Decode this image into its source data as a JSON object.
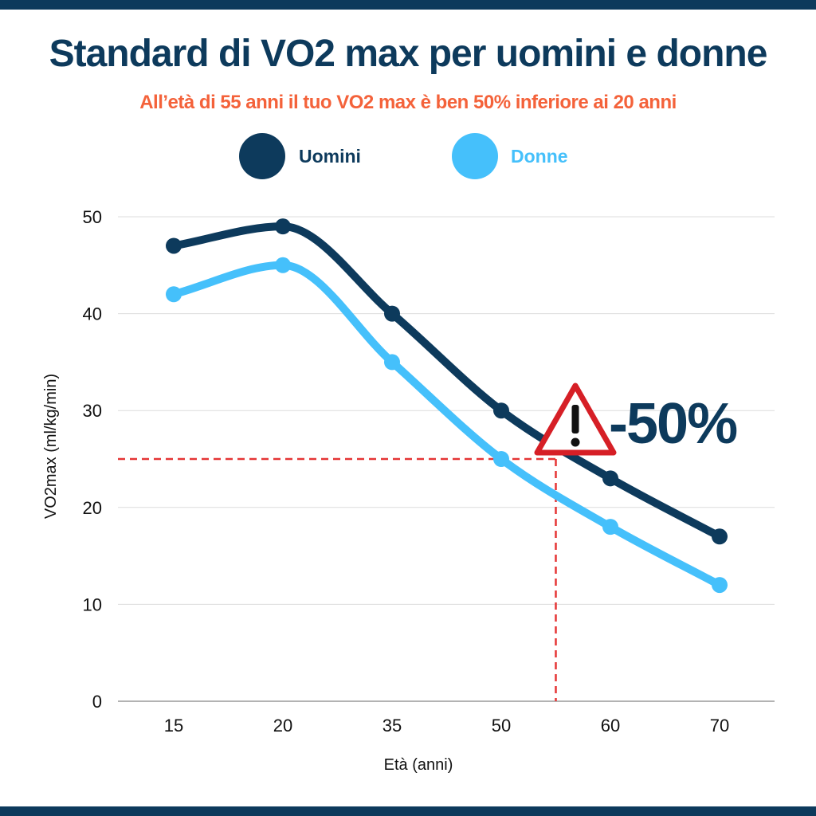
{
  "header": {
    "title": "Standard di VO2 max per uomini e donne",
    "subtitle": "All’età di 55 anni il tuo VO2 max è ben 50% inferiore ai 20 anni"
  },
  "colors": {
    "men": "#0d3a5c",
    "women": "#45c0fb",
    "accent": "#f4623a",
    "marker_line": "#e53535",
    "warning_red": "#d61f26"
  },
  "annotation": {
    "text": "-50%",
    "icon": "warning-triangle-icon",
    "marker_age": 55,
    "marker_value": 25
  },
  "chart_data": {
    "type": "line",
    "categories": [
      "15",
      "20",
      "35",
      "50",
      "60",
      "70"
    ],
    "series": [
      {
        "name": "Uomini",
        "values": [
          47,
          49,
          40,
          30,
          23,
          17
        ]
      },
      {
        "name": "Donne",
        "values": [
          42,
          45,
          35,
          25,
          18,
          12
        ]
      }
    ],
    "xlabel": "Età (anni)",
    "ylabel": "VO2max (ml/kg/min)",
    "ylim": [
      0,
      50
    ],
    "yticks": [
      0,
      10,
      20,
      30,
      40,
      50
    ],
    "grid": true,
    "legend": "top-center"
  }
}
